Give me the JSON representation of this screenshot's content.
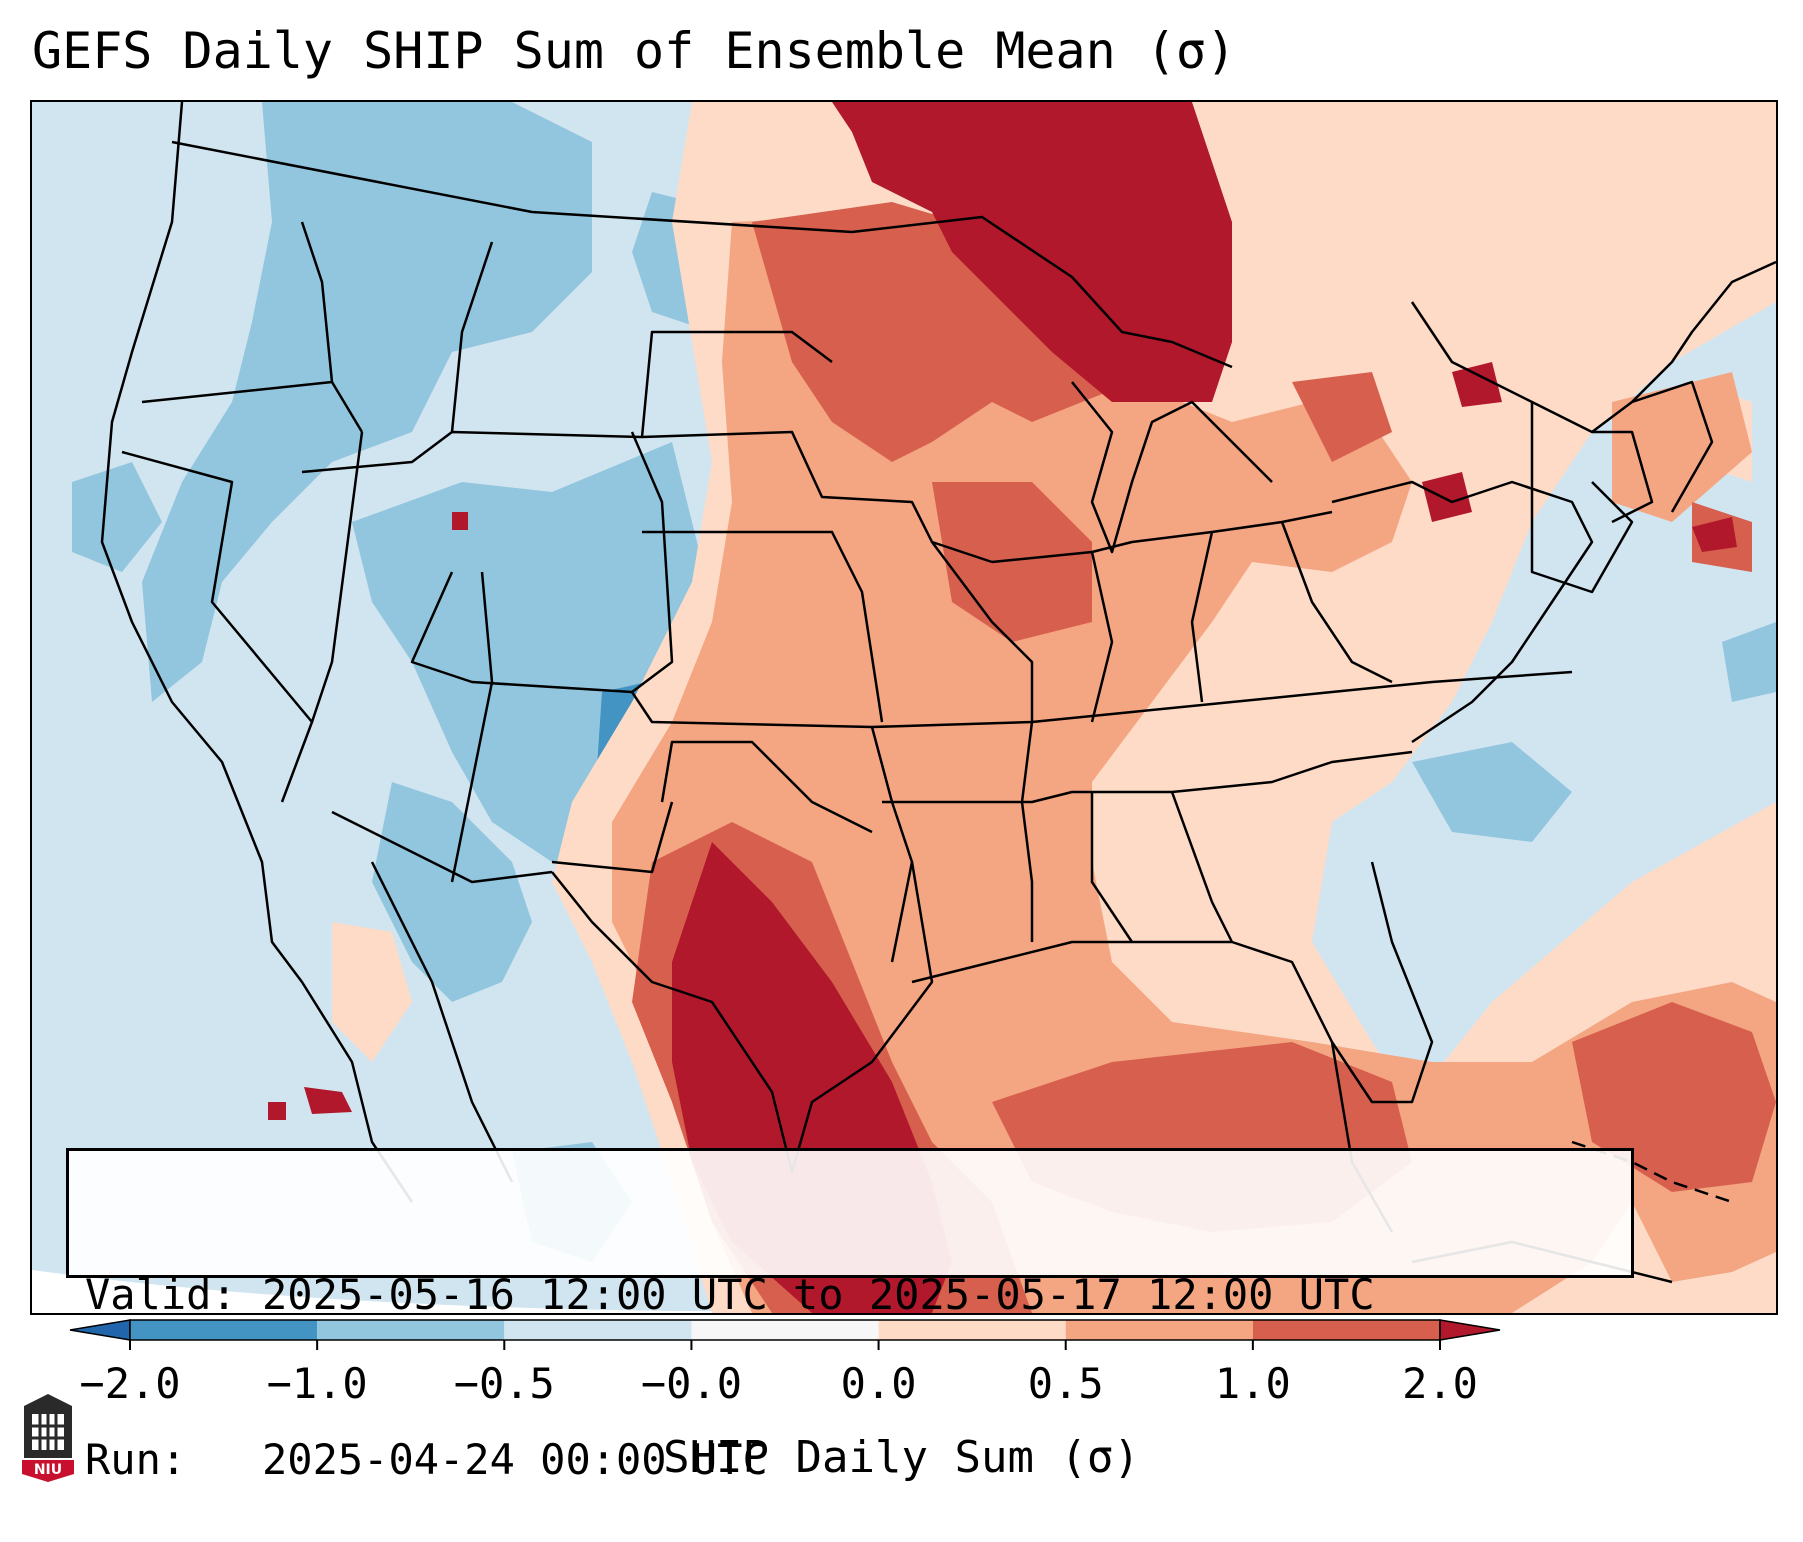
{
  "title": "GEFS Daily SHIP Sum of Ensemble Mean (σ)",
  "info": {
    "valid_label": "Valid:",
    "valid_value": "2025-05-16 12:00 UTC to 2025-05-17 12:00 UTC",
    "run_label": "Run:",
    "run_value": "2025-04-24 00:00 UTC"
  },
  "colorbar": {
    "label": "SHIP Daily Sum (σ)",
    "ticks": [
      "−2.0",
      "−1.0",
      "−0.5",
      "−0.0",
      "0.0",
      "0.5",
      "1.0",
      "2.0"
    ],
    "colors": {
      "extend_low": "#2166ac",
      "bin_m2_m1": "#4393c3",
      "bin_m1_m05": "#92c5de",
      "bin_m05_0": "#d1e5f0",
      "bin_0": "#f7f7f7",
      "bin_0_05": "#fddbc7",
      "bin_05_1": "#f4a582",
      "bin_1_2": "#d6604d",
      "extend_high": "#b2182b"
    }
  },
  "logo": {
    "text": "NIU",
    "icon": "niu-building-icon"
  }
}
